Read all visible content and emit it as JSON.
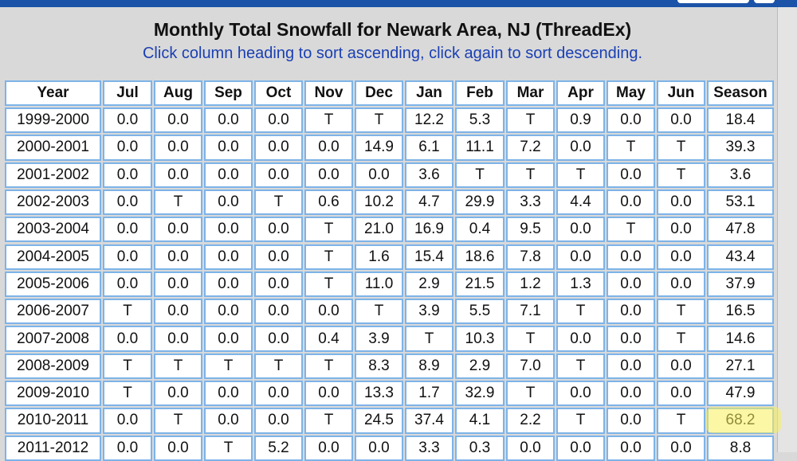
{
  "header": {
    "title": "Monthly Total Snowfall for Newark Area, NJ (ThreadEx)",
    "subtitle": "Click column heading to sort ascending, click again to sort descending."
  },
  "table": {
    "columns": [
      "Year",
      "Jul",
      "Aug",
      "Sep",
      "Oct",
      "Nov",
      "Dec",
      "Jan",
      "Feb",
      "Mar",
      "Apr",
      "May",
      "Jun",
      "Season"
    ],
    "rows": [
      [
        "1999-2000",
        "0.0",
        "0.0",
        "0.0",
        "0.0",
        "T",
        "T",
        "12.2",
        "5.3",
        "T",
        "0.9",
        "0.0",
        "0.0",
        "18.4"
      ],
      [
        "2000-2001",
        "0.0",
        "0.0",
        "0.0",
        "0.0",
        "0.0",
        "14.9",
        "6.1",
        "11.1",
        "7.2",
        "0.0",
        "T",
        "T",
        "39.3"
      ],
      [
        "2001-2002",
        "0.0",
        "0.0",
        "0.0",
        "0.0",
        "0.0",
        "0.0",
        "3.6",
        "T",
        "T",
        "T",
        "0.0",
        "T",
        "3.6"
      ],
      [
        "2002-2003",
        "0.0",
        "T",
        "0.0",
        "T",
        "0.6",
        "10.2",
        "4.7",
        "29.9",
        "3.3",
        "4.4",
        "0.0",
        "0.0",
        "53.1"
      ],
      [
        "2003-2004",
        "0.0",
        "0.0",
        "0.0",
        "0.0",
        "T",
        "21.0",
        "16.9",
        "0.4",
        "9.5",
        "0.0",
        "T",
        "0.0",
        "47.8"
      ],
      [
        "2004-2005",
        "0.0",
        "0.0",
        "0.0",
        "0.0",
        "T",
        "1.6",
        "15.4",
        "18.6",
        "7.8",
        "0.0",
        "0.0",
        "0.0",
        "43.4"
      ],
      [
        "2005-2006",
        "0.0",
        "0.0",
        "0.0",
        "0.0",
        "T",
        "11.0",
        "2.9",
        "21.5",
        "1.2",
        "1.3",
        "0.0",
        "0.0",
        "37.9"
      ],
      [
        "2006-2007",
        "T",
        "0.0",
        "0.0",
        "0.0",
        "0.0",
        "T",
        "3.9",
        "5.5",
        "7.1",
        "T",
        "0.0",
        "T",
        "16.5"
      ],
      [
        "2007-2008",
        "0.0",
        "0.0",
        "0.0",
        "0.0",
        "0.4",
        "3.9",
        "T",
        "10.3",
        "T",
        "0.0",
        "0.0",
        "T",
        "14.6"
      ],
      [
        "2008-2009",
        "T",
        "T",
        "T",
        "T",
        "T",
        "8.3",
        "8.9",
        "2.9",
        "7.0",
        "T",
        "0.0",
        "0.0",
        "27.1"
      ],
      [
        "2009-2010",
        "T",
        "0.0",
        "0.0",
        "0.0",
        "0.0",
        "13.3",
        "1.7",
        "32.9",
        "T",
        "0.0",
        "0.0",
        "0.0",
        "47.9"
      ],
      [
        "2010-2011",
        "0.0",
        "T",
        "0.0",
        "0.0",
        "T",
        "24.5",
        "37.4",
        "4.1",
        "2.2",
        "T",
        "0.0",
        "T",
        "68.2"
      ],
      [
        "2011-2012",
        "0.0",
        "0.0",
        "T",
        "5.2",
        "0.0",
        "0.0",
        "3.3",
        "0.3",
        "0.0",
        "0.0",
        "0.0",
        "0.0",
        "8.8"
      ]
    ]
  }
}
